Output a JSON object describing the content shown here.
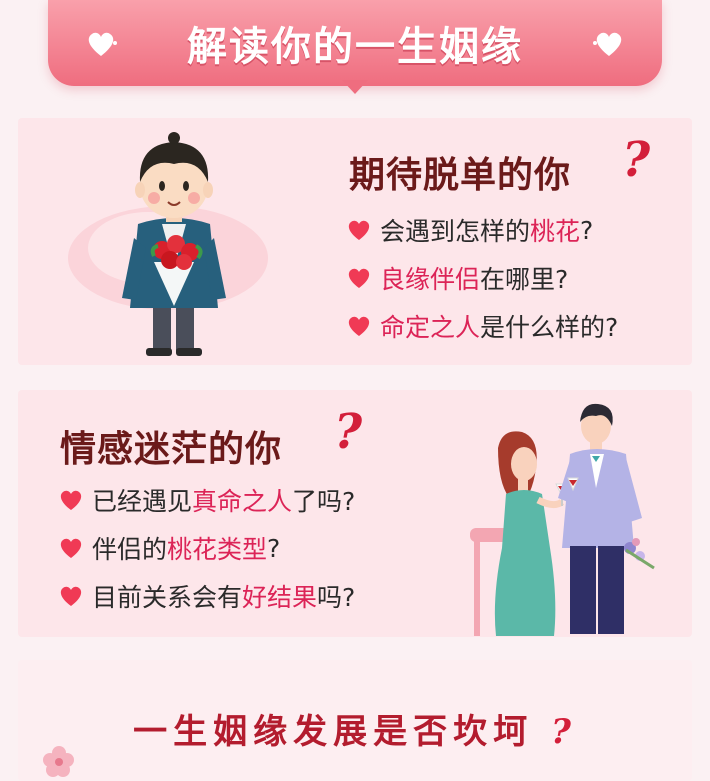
{
  "header": {
    "title": "解读你的一生姻缘"
  },
  "section1": {
    "title": "期待脱单的你",
    "qmark": "?",
    "items": [
      {
        "pre": "会遇到怎样的",
        "hl": "桃花",
        "post": "?"
      },
      {
        "pre": "",
        "hl": "良缘伴侣",
        "post": "在哪里?"
      },
      {
        "pre": "",
        "hl": "命定之人",
        "post": "是什么样的?"
      }
    ]
  },
  "section2": {
    "title": "情感迷茫的你",
    "qmark": "?",
    "items": [
      {
        "pre": "已经遇见",
        "hl": "真命之人",
        "post": "了吗?"
      },
      {
        "pre": "伴侣的",
        "hl": "桃花类型",
        "post": "?"
      },
      {
        "pre": "目前关系会有",
        "hl": "好结果",
        "post": "吗?"
      }
    ]
  },
  "section3": {
    "title": "一生姻缘发展是否坎坷",
    "qmark": "?"
  },
  "colors": {
    "accent": "#dc2457",
    "title": "#6b1a1a",
    "banner": "#ef6d7f"
  },
  "icons": [
    "heart-icon",
    "boy-with-roses-illustration",
    "couple-toasting-illustration"
  ]
}
